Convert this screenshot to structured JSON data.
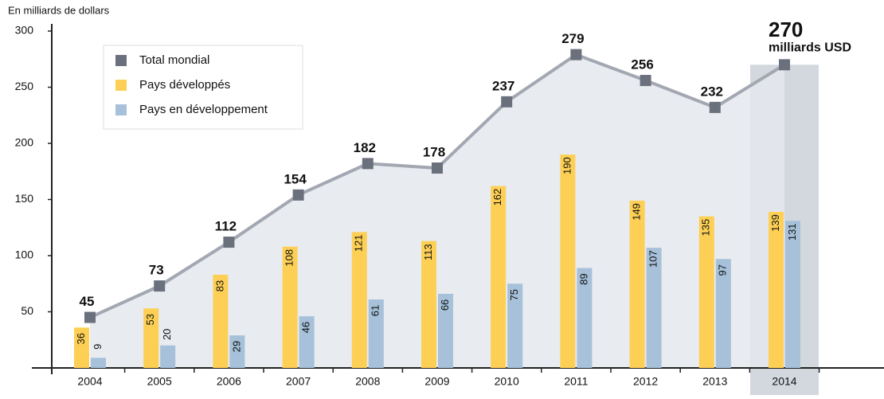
{
  "chart_data": {
    "type": "bar-line",
    "subtitle": "En milliards de dollars",
    "categories": [
      "2004",
      "2005",
      "2006",
      "2007",
      "2008",
      "2009",
      "2010",
      "2011",
      "2012",
      "2013",
      "2014"
    ],
    "series": [
      {
        "name": "Total mondial",
        "type": "line",
        "color": "#6b717c",
        "values": [
          45,
          73,
          112,
          154,
          182,
          178,
          237,
          279,
          256,
          232,
          270
        ]
      },
      {
        "name": "Pays développés",
        "type": "bar",
        "color": "#fdd055",
        "values": [
          36,
          53,
          83,
          108,
          121,
          113,
          162,
          190,
          149,
          135,
          139
        ]
      },
      {
        "name": "Pays en développement",
        "type": "bar",
        "color": "#a6c1d9",
        "values": [
          9,
          20,
          29,
          46,
          61,
          66,
          75,
          89,
          107,
          97,
          131
        ]
      }
    ],
    "annotation": "milliards USD",
    "ylim": [
      0,
      300
    ],
    "yticks": [
      50,
      100,
      150,
      200,
      250,
      300
    ]
  }
}
